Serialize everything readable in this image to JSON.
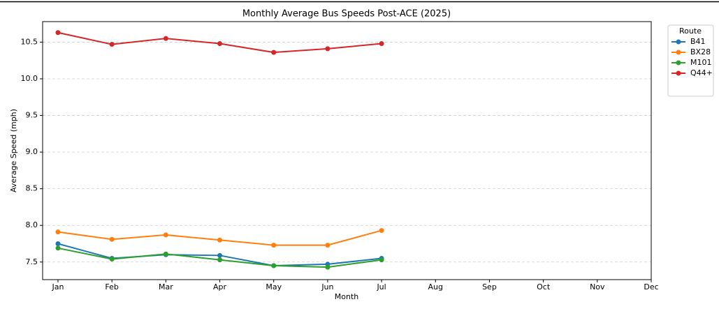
{
  "chart_data": {
    "type": "line",
    "title": "Monthly Average Bus Speeds Post-ACE (2025)",
    "x_label": "Month",
    "y_label": "Average Speed (mph)",
    "categories": [
      "Jan",
      "Feb",
      "Mar",
      "Apr",
      "May",
      "Jun",
      "Jul",
      "Aug",
      "Sep",
      "Oct",
      "Nov",
      "Dec"
    ],
    "series": [
      {
        "name": "B41",
        "color": "#1f77b4",
        "values": [
          7.75,
          7.55,
          7.6,
          7.59,
          7.45,
          7.47,
          7.55,
          null,
          null,
          null,
          null,
          null
        ]
      },
      {
        "name": "BX28",
        "color": "#ff7f0e",
        "values": [
          7.91,
          7.81,
          7.87,
          7.8,
          7.73,
          7.73,
          7.93,
          null,
          null,
          null,
          null,
          null
        ]
      },
      {
        "name": "M101",
        "color": "#2ca02c",
        "values": [
          7.69,
          7.54,
          7.61,
          7.53,
          7.45,
          7.43,
          7.53,
          null,
          null,
          null,
          null,
          null
        ]
      },
      {
        "name": "Q44+",
        "color": "#d62728",
        "values": [
          10.63,
          10.47,
          10.55,
          10.48,
          10.36,
          10.41,
          10.48,
          null,
          null,
          null,
          null,
          null
        ]
      }
    ],
    "ylim": [
      7.26,
      10.78
    ],
    "yticks": [
      7.5,
      {
        "value": 8,
        "label": "8.0"
      },
      8.5,
      {
        "value": 9,
        "label": "9.0"
      },
      9.5,
      {
        "value": 10,
        "label": "10.0"
      },
      10.5
    ],
    "grid": true,
    "legend_title": "Route",
    "legend_position": "outside-right"
  }
}
